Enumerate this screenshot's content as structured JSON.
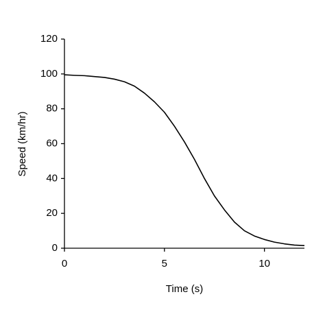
{
  "chart_data": {
    "type": "line",
    "x_label": "Time (s)",
    "y_label": "Speed (km/hr)",
    "x": [
      0,
      0.5,
      1,
      1.5,
      2,
      2.5,
      3,
      3.5,
      4,
      4.5,
      5,
      5.5,
      6,
      6.5,
      7,
      7.5,
      8,
      8.5,
      9,
      9.5,
      10,
      10.5,
      11,
      11.5,
      12
    ],
    "series": [
      {
        "name": "Speed",
        "color": "#000000",
        "values": [
          99.5,
          99.2,
          99,
          98.5,
          98,
          97,
          95.5,
          93,
          89,
          84,
          78,
          70,
          61,
          51,
          40,
          30,
          22,
          15,
          10,
          7,
          5,
          3.5,
          2.5,
          1.8,
          1.5
        ]
      }
    ],
    "xlim": [
      0,
      12
    ],
    "xticks": [
      0,
      5,
      10
    ],
    "ylim": [
      0,
      120
    ],
    "yticks": [
      0,
      20,
      40,
      60,
      80,
      100,
      120
    ],
    "grid": false
  }
}
